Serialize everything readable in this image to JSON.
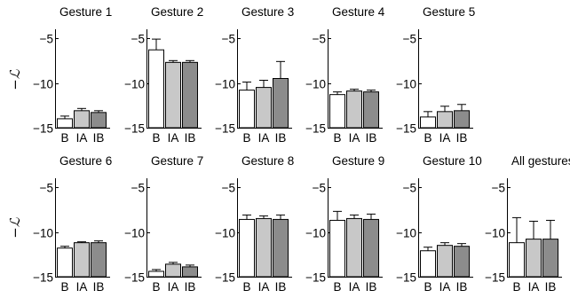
{
  "chart_data": {
    "type": "bar",
    "ylabel": "−ℒ",
    "ylim": [
      -15,
      -4
    ],
    "yticks": [
      -15,
      -10,
      -5
    ],
    "ytick_labels": [
      "−15",
      "−10",
      "−5"
    ],
    "categories": [
      "B",
      "IA",
      "IB"
    ],
    "bar_colors": {
      "B": "#ffffff",
      "IA": "#c8c8c8",
      "IB": "#8c8c8c"
    },
    "edge_color": "#000000",
    "panels": [
      {
        "title": "Gesture 1",
        "values": {
          "B": -14.0,
          "IA": -13.1,
          "IB": -13.3
        },
        "errors": {
          "B": 0.3,
          "IA": 0.25,
          "IB": 0.2
        }
      },
      {
        "title": "Gesture 2",
        "values": {
          "B": -6.3,
          "IA": -7.7,
          "IB": -7.7
        },
        "errors": {
          "B": 1.2,
          "IA": 0.2,
          "IB": 0.2
        }
      },
      {
        "title": "Gesture 3",
        "values": {
          "B": -10.8,
          "IA": -10.5,
          "IB": -9.5
        },
        "errors": {
          "B": 0.9,
          "IA": 0.8,
          "IB": 1.9
        }
      },
      {
        "title": "Gesture 4",
        "values": {
          "B": -11.3,
          "IA": -10.9,
          "IB": -11.0
        },
        "errors": {
          "B": 0.3,
          "IA": 0.2,
          "IB": 0.2
        }
      },
      {
        "title": "Gesture 5",
        "values": {
          "B": -13.8,
          "IA": -13.2,
          "IB": -13.1
        },
        "errors": {
          "B": 0.6,
          "IA": 0.6,
          "IB": 0.7
        }
      },
      {
        "title": "Gesture 6",
        "values": {
          "B": -11.8,
          "IA": -11.2,
          "IB": -11.2
        },
        "errors": {
          "B": 0.2,
          "IA": 0.1,
          "IB": 0.2
        }
      },
      {
        "title": "Gesture 7",
        "values": {
          "B": -14.4,
          "IA": -13.6,
          "IB": -13.9
        },
        "errors": {
          "B": 0.2,
          "IA": 0.2,
          "IB": 0.2
        }
      },
      {
        "title": "Gesture 8",
        "values": {
          "B": -8.6,
          "IA": -8.5,
          "IB": -8.6
        },
        "errors": {
          "B": 0.5,
          "IA": 0.3,
          "IB": 0.5
        }
      },
      {
        "title": "Gesture 9",
        "values": {
          "B": -8.7,
          "IA": -8.5,
          "IB": -8.6
        },
        "errors": {
          "B": 1.0,
          "IA": 0.4,
          "IB": 0.6
        }
      },
      {
        "title": "Gesture 10",
        "values": {
          "B": -12.1,
          "IA": -11.5,
          "IB": -11.6
        },
        "errors": {
          "B": 0.4,
          "IA": 0.3,
          "IB": 0.3
        }
      },
      {
        "title": "All gestures",
        "values": {
          "B": -11.2,
          "IA": -10.8,
          "IB": -10.8
        },
        "errors": {
          "B": 2.8,
          "IA": 2.0,
          "IB": 2.1
        }
      }
    ]
  }
}
